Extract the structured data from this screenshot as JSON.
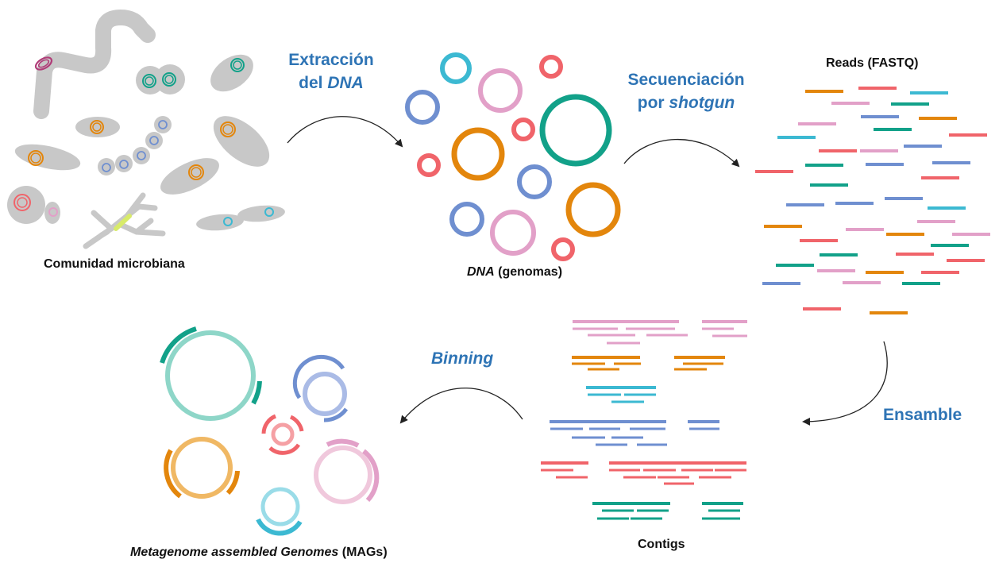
{
  "labels": {
    "community": "Comunidad microbiana",
    "dna_italic": "DNA",
    "dna_rest": " (genomas)",
    "reads": "Reads (FASTQ)",
    "contigs": "Contigs",
    "mags_italic": "Metagenome assembled Genomes",
    "mags_rest": " (MAGs)"
  },
  "steps": {
    "extraction_line1": "Extracción",
    "extraction_line2_plain": "del ",
    "extraction_line2_italic": "DNA",
    "sequencing_line1": "Secuenciación",
    "sequencing_line2_plain": "por ",
    "sequencing_line2_italic": "shotgun",
    "assembly": "Ensamble",
    "binning": "Binning"
  },
  "colors": {
    "step_text": "#2e74b5",
    "cell_gray": "#c8c8c8",
    "orange": "#e3860c",
    "teal": "#12a189",
    "blue": "#6f8fd0",
    "pink": "#e2a0c8",
    "red": "#f0646a",
    "cyan": "#3cb9d2",
    "purple": "#b03c78",
    "yellow_green": "#d8eb6a",
    "arrow": "#222222"
  }
}
